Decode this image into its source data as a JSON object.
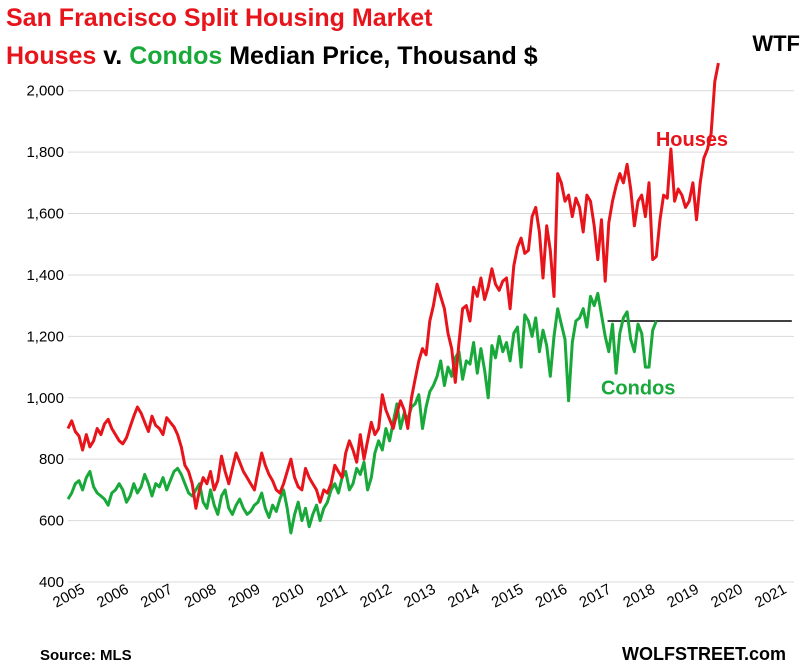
{
  "title": "San Francisco Split Housing Market",
  "subtitle": {
    "part1": "Houses",
    "part2": " v. ",
    "part3": "Condos",
    "part4": " Median Price, Thousand $"
  },
  "source": "Source: MLS",
  "brand": "WOLFSTREET.com",
  "colors": {
    "houses": "#e8141b",
    "condos": "#19a83a",
    "grid": "#d9d9d9"
  },
  "chart_data": {
    "type": "line",
    "yticks": [
      400,
      600,
      800,
      1000,
      1200,
      1400,
      1600,
      1800,
      2000
    ],
    "ytick_labels": [
      "400",
      "600",
      "800",
      "1,000",
      "1,200",
      "1,400",
      "1,600",
      "1,800",
      "2,000"
    ],
    "ylim": [
      400,
      2100
    ],
    "xticks": [
      2005,
      2006,
      2007,
      2008,
      2009,
      2010,
      2011,
      2012,
      2013,
      2014,
      2015,
      2016,
      2017,
      2018,
      2019,
      2020,
      2021
    ],
    "xlim": [
      2005.0,
      2021.55
    ],
    "grid": true,
    "annotations": [
      {
        "text": "Houses",
        "series": "Houses",
        "x": 2018.4,
        "y": 1820
      },
      {
        "text": "Condos",
        "series": "Condos",
        "x": 2017.15,
        "y": 1010
      },
      {
        "text": "WTF",
        "series": "",
        "x": 2020.6,
        "y": 2130
      }
    ],
    "reference_line": {
      "y": 1250,
      "x_start": 2017.3,
      "x_end": 2021.5
    },
    "series": [
      {
        "name": "Houses",
        "x_start": 2005.0,
        "x_step": 0.0833,
        "values": [
          900,
          925,
          890,
          875,
          830,
          880,
          840,
          860,
          900,
          880,
          915,
          930,
          900,
          880,
          860,
          850,
          870,
          905,
          940,
          970,
          950,
          920,
          890,
          940,
          910,
          900,
          880,
          935,
          920,
          905,
          880,
          840,
          780,
          760,
          720,
          640,
          700,
          740,
          720,
          760,
          700,
          730,
          810,
          760,
          720,
          770,
          820,
          790,
          760,
          740,
          720,
          700,
          760,
          820,
          780,
          750,
          730,
          700,
          690,
          720,
          760,
          800,
          740,
          710,
          700,
          770,
          740,
          720,
          700,
          660,
          700,
          690,
          720,
          780,
          760,
          740,
          820,
          860,
          830,
          790,
          880,
          800,
          860,
          920,
          880,
          900,
          1010,
          960,
          930,
          900,
          950,
          990,
          960,
          900,
          1000,
          1060,
          1120,
          1160,
          1140,
          1250,
          1300,
          1370,
          1330,
          1290,
          1210,
          1160,
          1050,
          1180,
          1290,
          1300,
          1250,
          1360,
          1330,
          1390,
          1320,
          1360,
          1420,
          1370,
          1350,
          1380,
          1390,
          1290,
          1430,
          1490,
          1520,
          1470,
          1480,
          1590,
          1620,
          1540,
          1390,
          1560,
          1480,
          1330,
          1730,
          1700,
          1640,
          1660,
          1590,
          1650,
          1620,
          1540,
          1660,
          1640,
          1560,
          1450,
          1580,
          1380,
          1570,
          1640,
          1690,
          1730,
          1700,
          1760,
          1680,
          1560,
          1640,
          1660,
          1590,
          1700,
          1450,
          1460,
          1580,
          1660,
          1650,
          1810,
          1640,
          1680,
          1660,
          1620,
          1640,
          1700,
          1580,
          1700,
          1780,
          1810,
          1860,
          2030,
          2090
        ]
      },
      {
        "name": "Condos",
        "x_start": 2005.0,
        "x_step": 0.0833,
        "values": [
          670,
          690,
          720,
          730,
          700,
          740,
          760,
          710,
          690,
          680,
          670,
          650,
          690,
          700,
          720,
          700,
          660,
          680,
          720,
          690,
          710,
          750,
          720,
          680,
          720,
          710,
          740,
          700,
          730,
          760,
          770,
          750,
          720,
          690,
          680,
          700,
          720,
          660,
          640,
          700,
          650,
          620,
          680,
          700,
          640,
          620,
          650,
          670,
          640,
          620,
          630,
          650,
          660,
          690,
          640,
          610,
          650,
          630,
          670,
          700,
          640,
          560,
          620,
          660,
          600,
          640,
          580,
          620,
          650,
          600,
          640,
          660,
          700,
          720,
          690,
          740,
          760,
          700,
          720,
          770,
          750,
          790,
          700,
          740,
          820,
          860,
          830,
          900,
          860,
          920,
          980,
          900,
          950,
          930,
          970,
          980,
          1010,
          900,
          970,
          1020,
          1040,
          1070,
          1120,
          1040,
          1100,
          1070,
          1130,
          1150,
          1060,
          1120,
          1110,
          1180,
          1080,
          1160,
          1090,
          1000,
          1170,
          1130,
          1200,
          1150,
          1180,
          1120,
          1210,
          1230,
          1100,
          1270,
          1250,
          1200,
          1260,
          1150,
          1220,
          1170,
          1070,
          1200,
          1290,
          1240,
          1190,
          990,
          1180,
          1250,
          1260,
          1290,
          1230,
          1330,
          1300,
          1340,
          1270,
          1200,
          1150,
          1240,
          1080,
          1210,
          1260,
          1280,
          1190,
          1150,
          1240,
          1210,
          1100,
          1100,
          1220,
          1250
        ]
      }
    ]
  }
}
